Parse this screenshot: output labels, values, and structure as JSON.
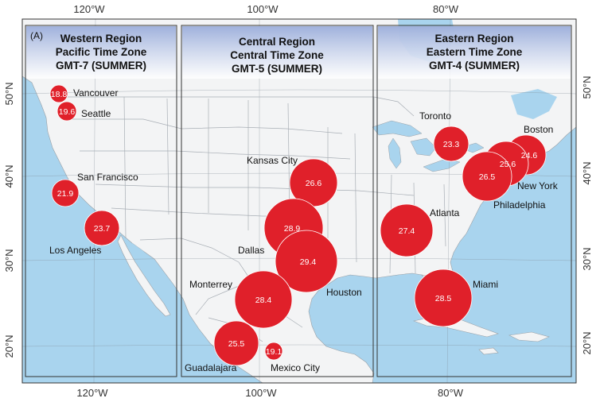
{
  "panel_label": "(A)",
  "axes": {
    "x_ticks": [
      "120°W",
      "100°W",
      "80°W"
    ],
    "y_ticks": [
      "50°N",
      "40°N",
      "30°N",
      "20°N"
    ]
  },
  "regions": [
    {
      "name": "Western Region",
      "zone": "Pacific Time Zone",
      "gmt": "GMT-7 (SUMMER)"
    },
    {
      "name": "Central Region",
      "zone": "Central Time Zone",
      "gmt": "GMT-5 (SUMMER)"
    },
    {
      "name": "Eastern Region",
      "zone": "Eastern Time Zone",
      "gmt": "GMT-4 (SUMMER)"
    }
  ],
  "cities": [
    {
      "name": "Vancouver",
      "value": "18.8",
      "lon": -123.1,
      "lat": 49.3
    },
    {
      "name": "Seattle",
      "value": "19.6",
      "lon": -122.3,
      "lat": 47.6
    },
    {
      "name": "San Francisco",
      "value": "21.9",
      "lon": -122.4,
      "lat": 37.8
    },
    {
      "name": "Los Angeles",
      "value": "23.7",
      "lon": -118.2,
      "lat": 34.1
    },
    {
      "name": "Kansas City",
      "value": "26.6",
      "lon": -94.6,
      "lat": 39.1
    },
    {
      "name": "Dallas",
      "value": "28.9",
      "lon": -96.8,
      "lat": 32.8
    },
    {
      "name": "Houston",
      "value": "29.4",
      "lon": -95.4,
      "lat": 29.8
    },
    {
      "name": "Monterrey",
      "value": "28.4",
      "lon": -100.3,
      "lat": 25.7
    },
    {
      "name": "Guadalajara",
      "value": "25.5",
      "lon": -103.3,
      "lat": 20.7
    },
    {
      "name": "Mexico City",
      "value": "19.1",
      "lon": -99.1,
      "lat": 19.4
    },
    {
      "name": "Toronto",
      "value": "23.3",
      "lon": -79.4,
      "lat": 43.7
    },
    {
      "name": "Boston",
      "value": "24.6",
      "lon": -71.1,
      "lat": 42.4
    },
    {
      "name": "New York",
      "value": "25.6",
      "lon": -74.0,
      "lat": 40.7
    },
    {
      "name": "Philadelphia",
      "value": "26.5",
      "lon": -75.2,
      "lat": 40.0
    },
    {
      "name": "Atlanta",
      "value": "27.4",
      "lon": -84.4,
      "lat": 33.7
    },
    {
      "name": "Miami",
      "value": "28.5",
      "lon": -80.2,
      "lat": 25.8
    }
  ],
  "colors": {
    "ocean": "#a9d4ee",
    "land": "#f3f4f5",
    "bubble": "#e0202a",
    "frame": "#333333"
  }
}
